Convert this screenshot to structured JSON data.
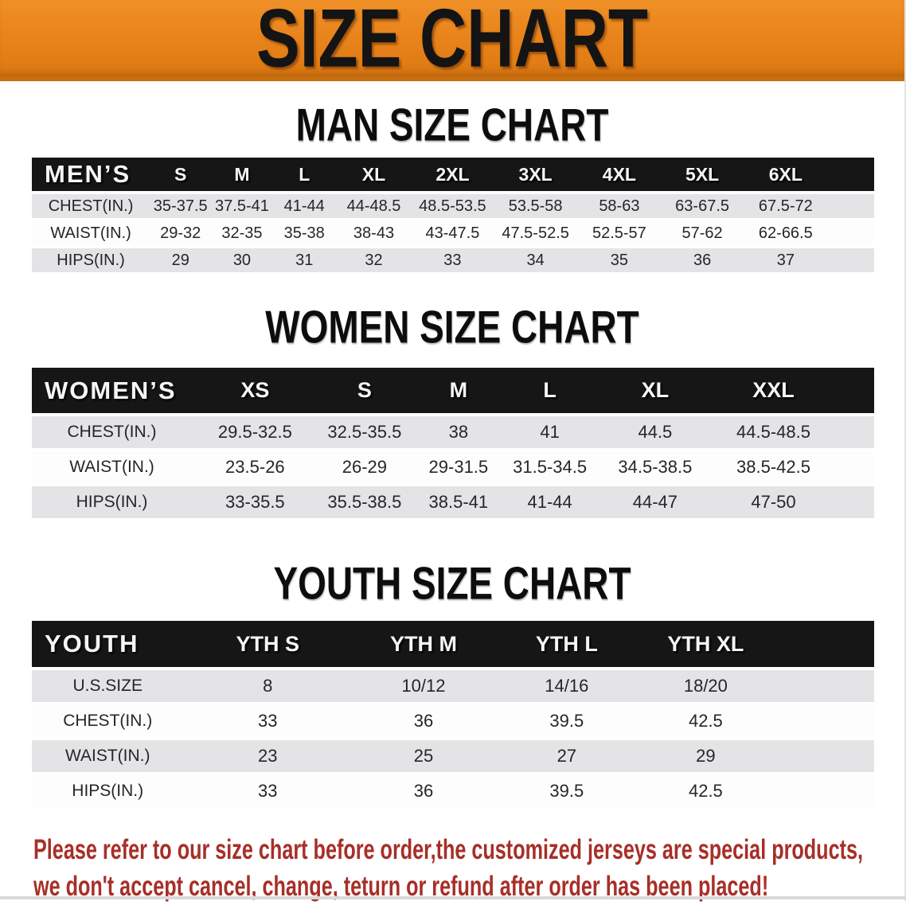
{
  "banner": {
    "title": "SIZE CHART"
  },
  "colors": {
    "banner_bg": "#E8821A",
    "header_bar": "#161616",
    "row_stripe": "#E4E4E6",
    "disclaimer_text": "#A72F28"
  },
  "sections": [
    {
      "heading": "MAN SIZE CHART",
      "header_label": "MEN’S",
      "columns": [
        "S",
        "M",
        "L",
        "XL",
        "2XL",
        "3XL",
        "4XL",
        "5XL",
        "6XL"
      ],
      "rows": [
        {
          "label": "CHEST(IN.)",
          "values": [
            "35-37.5",
            "37.5-41",
            "41-44",
            "44-48.5",
            "48.5-53.5",
            "53.5-58",
            "58-63",
            "63-67.5",
            "67.5-72"
          ]
        },
        {
          "label": "WAIST(IN.)",
          "values": [
            "29-32",
            "32-35",
            "35-38",
            "38-43",
            "43-47.5",
            "47.5-52.5",
            "52.5-57",
            "57-62",
            "62-66.5"
          ]
        },
        {
          "label": "HIPS(IN.)",
          "values": [
            "29",
            "30",
            "31",
            "32",
            "33",
            "34",
            "35",
            "36",
            "37"
          ]
        }
      ]
    },
    {
      "heading": "WOMEN SIZE CHART",
      "header_label": "WOMEN’S",
      "columns": [
        "XS",
        "S",
        "M",
        "L",
        "XL",
        "XXL"
      ],
      "rows": [
        {
          "label": "CHEST(IN.)",
          "values": [
            "29.5-32.5",
            "32.5-35.5",
            "38",
            "41",
            "44.5",
            "44.5-48.5"
          ]
        },
        {
          "label": "WAIST(IN.)",
          "values": [
            "23.5-26",
            "26-29",
            "29-31.5",
            "31.5-34.5",
            "34.5-38.5",
            "38.5-42.5"
          ]
        },
        {
          "label": "HIPS(IN.)",
          "values": [
            "33-35.5",
            "35.5-38.5",
            "38.5-41",
            "41-44",
            "44-47",
            "47-50"
          ]
        }
      ]
    },
    {
      "heading": "YOUTH SIZE CHART",
      "header_label": "YOUTH",
      "columns": [
        "YTH S",
        "YTH M",
        "YTH L",
        "YTH XL"
      ],
      "rows": [
        {
          "label": "U.S.SIZE",
          "values": [
            "8",
            "10/12",
            "14/16",
            "18/20"
          ]
        },
        {
          "label": "CHEST(IN.)",
          "values": [
            "33",
            "36",
            "39.5",
            "42.5"
          ]
        },
        {
          "label": "WAIST(IN.)",
          "values": [
            "23",
            "25",
            "27",
            "29"
          ]
        },
        {
          "label": "HIPS(IN.)",
          "values": [
            "33",
            "36",
            "39.5",
            "42.5"
          ]
        }
      ]
    }
  ],
  "disclaimer": {
    "line1": "Please refer to our size chart before order,the customized jerseys are special products,",
    "line2": "we don't accept cancel, change, teturn or refund after order has been placed!"
  }
}
